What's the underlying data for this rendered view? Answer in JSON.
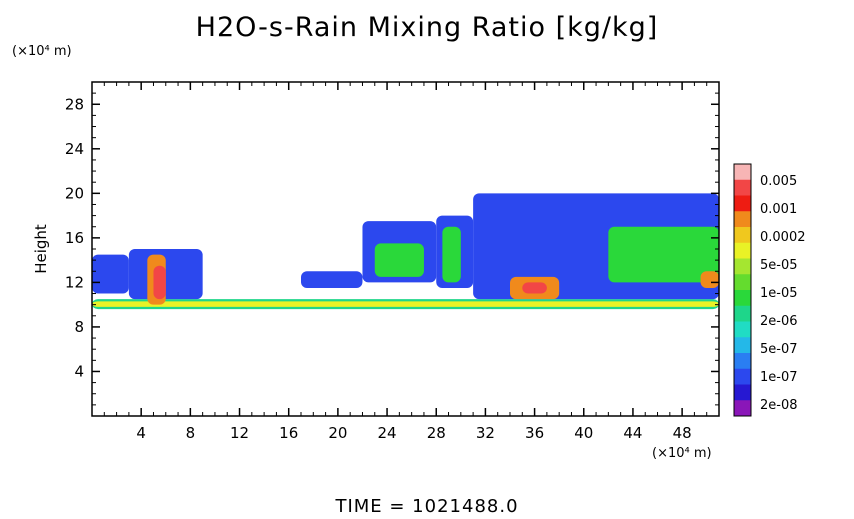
{
  "chart_data": {
    "type": "heatmap",
    "title": "H2O-s-Rain Mixing Ratio [kg/kg]",
    "ylabel": "Height",
    "y_unit": "(×10⁴ m)",
    "x_unit": "(×10⁴ m)",
    "footer": "TIME = 1021488.0",
    "xlim": [
      0,
      51
    ],
    "ylim": [
      0,
      30
    ],
    "x_ticks": [
      4,
      8,
      12,
      16,
      20,
      24,
      28,
      32,
      36,
      40,
      44,
      48
    ],
    "y_ticks": [
      4,
      8,
      12,
      16,
      20,
      24,
      28
    ],
    "colorbar": {
      "labels": [
        "0.005",
        "0.001",
        "0.0002",
        "5e-05",
        "1e-05",
        "2e-06",
        "5e-07",
        "1e-07",
        "2e-08"
      ],
      "colors": [
        "#f7b5b5",
        "#f24646",
        "#ee1c12",
        "#f08a1c",
        "#f0c81e",
        "#e9f226",
        "#a5e630",
        "#64dc2e",
        "#2ad83a",
        "#1ed68a",
        "#20dcc4",
        "#24b8e8",
        "#2a7ef2",
        "#2c48ee",
        "#2618d2",
        "#8a16b8"
      ]
    },
    "regions": [
      {
        "level": "2e-06",
        "x": [
          0,
          51
        ],
        "y": [
          9.6,
          10.5
        ]
      },
      {
        "level": "5e-05",
        "x": [
          0,
          51
        ],
        "y": [
          9.8,
          10.3
        ]
      },
      {
        "level": "1e-07",
        "x": [
          0,
          3
        ],
        "y": [
          11,
          14.5
        ]
      },
      {
        "level": "1e-07",
        "x": [
          3,
          9
        ],
        "y": [
          10.5,
          15
        ]
      },
      {
        "level": "0.0002",
        "x": [
          4.5,
          6
        ],
        "y": [
          10,
          14.5
        ]
      },
      {
        "level": "0.001",
        "x": [
          5,
          6
        ],
        "y": [
          10.5,
          13.5
        ]
      },
      {
        "level": "1e-07",
        "x": [
          17,
          22
        ],
        "y": [
          11.5,
          13
        ]
      },
      {
        "level": "1e-07",
        "x": [
          22,
          28
        ],
        "y": [
          12,
          17.5
        ]
      },
      {
        "level": "1e-05",
        "x": [
          23,
          27
        ],
        "y": [
          12.5,
          15.5
        ]
      },
      {
        "level": "1e-07",
        "x": [
          28,
          31
        ],
        "y": [
          11.5,
          18
        ]
      },
      {
        "level": "1e-05",
        "x": [
          28.5,
          30
        ],
        "y": [
          12,
          17
        ]
      },
      {
        "level": "1e-07",
        "x": [
          31,
          51
        ],
        "y": [
          10.5,
          20
        ]
      },
      {
        "level": "1e-05",
        "x": [
          42,
          51
        ],
        "y": [
          12,
          17
        ]
      },
      {
        "level": "0.0002",
        "x": [
          34,
          38
        ],
        "y": [
          10.5,
          12.5
        ]
      },
      {
        "level": "0.001",
        "x": [
          35,
          37
        ],
        "y": [
          11,
          12
        ]
      },
      {
        "level": "0.0002",
        "x": [
          49.5,
          51
        ],
        "y": [
          11.5,
          13
        ]
      }
    ]
  }
}
